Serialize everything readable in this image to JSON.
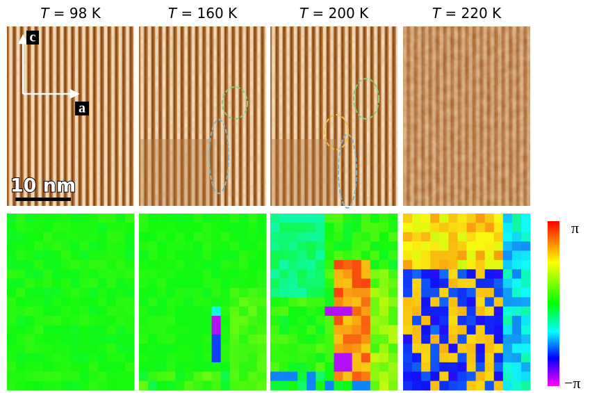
{
  "panels": [
    {
      "symbol": "T",
      "temperature": "= 98 K"
    },
    {
      "symbol": "T",
      "temperature": "= 160 K"
    },
    {
      "symbol": "T",
      "temperature": "= 200 K"
    },
    {
      "symbol": "T",
      "temperature": "= 220 K"
    }
  ],
  "axes": {
    "vertical": "c",
    "horizontal": "a"
  },
  "scale_bar": "10 nm",
  "colorbar": {
    "max_label": "π",
    "min_label": "−π"
  }
}
